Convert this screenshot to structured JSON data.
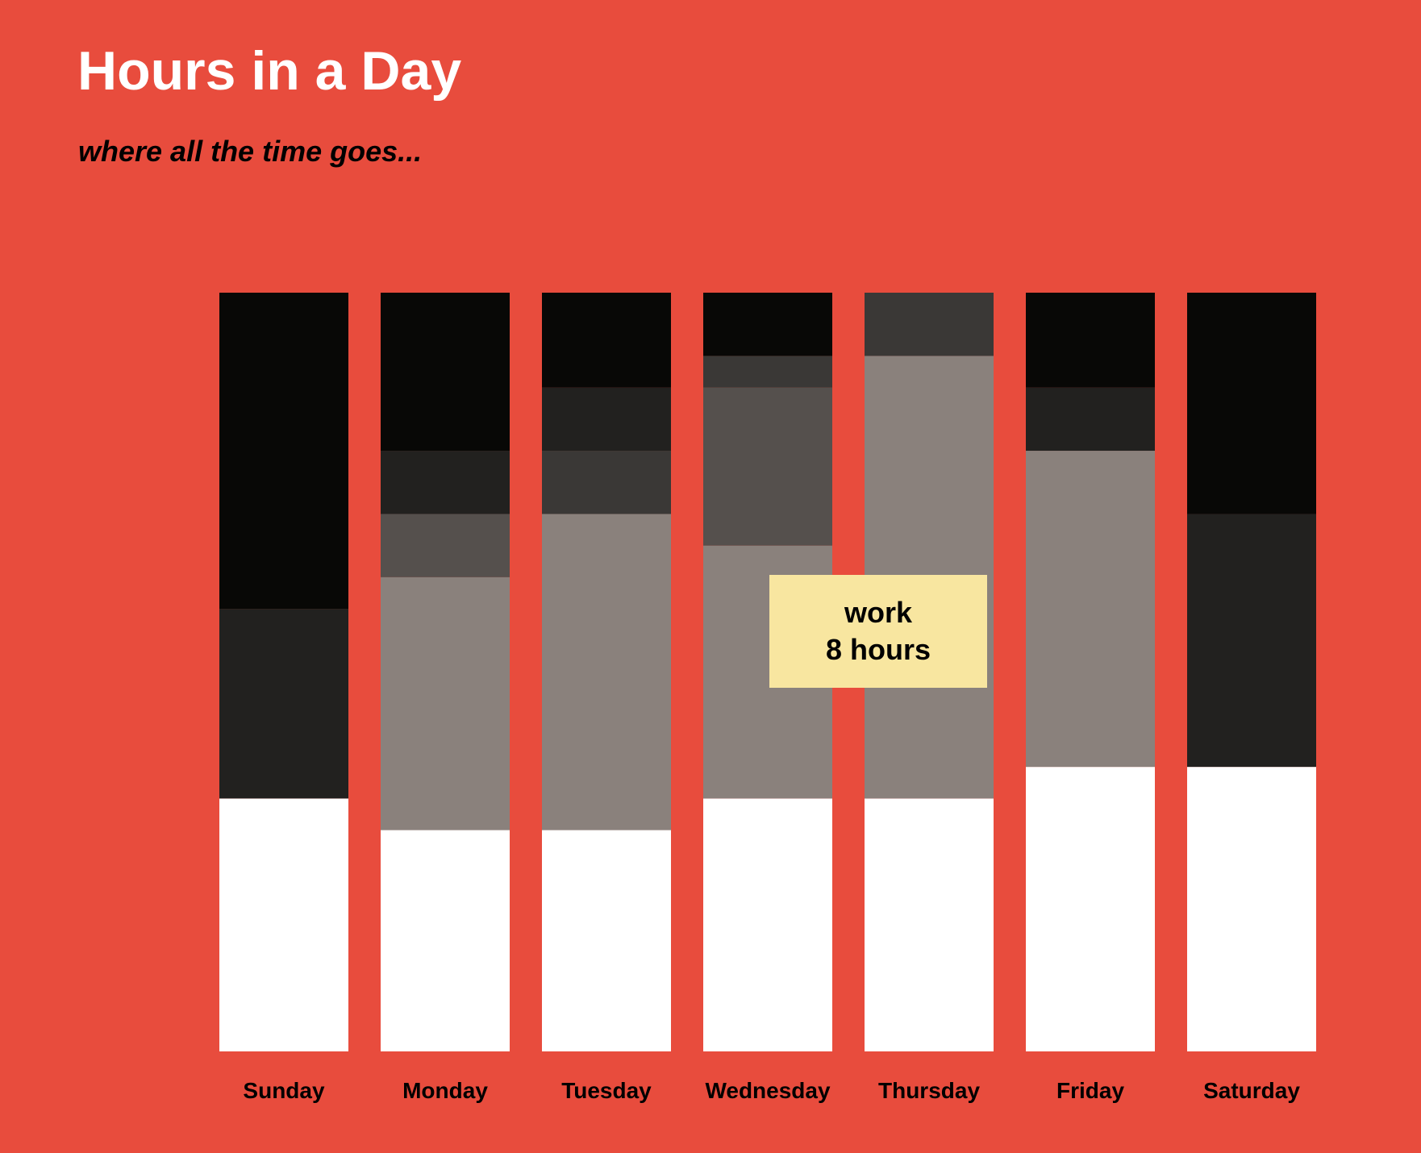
{
  "title": "Hours in a Day",
  "subtitle": "where all the time goes...",
  "colors": {
    "background": "#e84c3d",
    "tooltip_background": "#f8e6a0"
  },
  "tooltip": {
    "category": "work",
    "value_text": "8 hours"
  },
  "chart_data": {
    "type": "bar",
    "stacked": true,
    "categories": [
      "Sunday",
      "Monday",
      "Tuesday",
      "Wednesday",
      "Thursday",
      "Friday",
      "Saturday"
    ],
    "ylim": [
      0,
      24
    ],
    "series": [
      {
        "color": "#ffffff",
        "values": [
          8,
          7,
          7,
          8,
          8,
          9,
          9
        ]
      },
      {
        "name": "work",
        "color": "#8a817c",
        "values": [
          0,
          8,
          10,
          8,
          14,
          10,
          0
        ]
      },
      {
        "color": "#55504d",
        "values": [
          0,
          2,
          0,
          5,
          0,
          0,
          0
        ]
      },
      {
        "color": "#3a3836",
        "values": [
          0,
          0,
          2,
          1,
          2,
          0,
          0
        ]
      },
      {
        "color": "#22211f",
        "values": [
          6,
          2,
          2,
          0,
          0,
          2,
          8
        ]
      },
      {
        "color": "#080806",
        "values": [
          10,
          5,
          3,
          2,
          0,
          3,
          7
        ]
      }
    ]
  }
}
